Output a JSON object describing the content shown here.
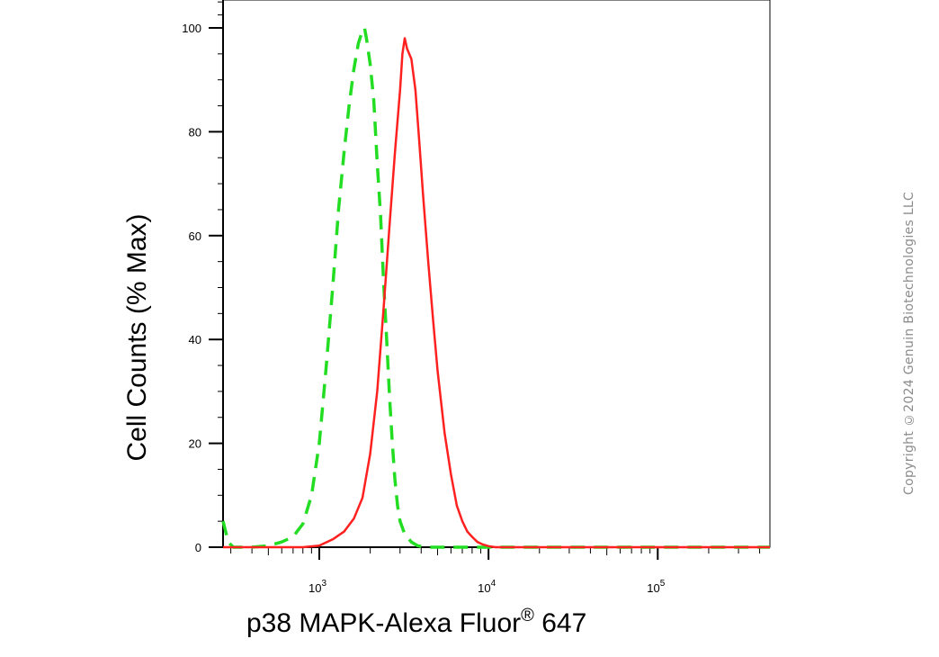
{
  "chart_data": {
    "type": "line",
    "title": "",
    "xlabel": "p38 MAPK-Alexa Fluor",
    "xlabel_superscript": "®",
    "xlabel_suffix": " 647",
    "ylabel": "Cell Counts (% Max)",
    "x_scale": "log",
    "xlim": [
      270,
      460000
    ],
    "ylim": [
      0,
      105
    ],
    "y_ticks": [
      0,
      20,
      40,
      60,
      80,
      100
    ],
    "x_major_ticks": [
      {
        "value": 1000,
        "base": "10",
        "exp": "3"
      },
      {
        "value": 10000,
        "base": "10",
        "exp": "4"
      },
      {
        "value": 100000,
        "base": "10",
        "exp": "5"
      }
    ],
    "grid": false,
    "legend": "none",
    "series": [
      {
        "color": "#22dd22",
        "style": "dashed",
        "x": [
          270,
          290,
          310,
          400,
          500,
          600,
          700,
          800,
          900,
          1000,
          1100,
          1200,
          1300,
          1400,
          1500,
          1600,
          1700,
          1800,
          1850,
          1900,
          2000,
          2100,
          2200,
          2300,
          2400,
          2500,
          2600,
          2700,
          2800,
          2900,
          3000,
          3200,
          3500,
          3800,
          4200,
          5000,
          10000,
          460000
        ],
        "y": [
          5,
          1,
          0,
          0,
          0.3,
          1,
          2,
          4.5,
          10,
          20,
          35,
          50,
          65,
          76,
          85,
          92,
          97,
          99.5,
          100,
          98,
          93,
          86,
          74,
          64,
          51,
          40,
          29,
          20,
          13,
          8,
          5,
          2.5,
          1,
          0.3,
          0,
          0,
          0,
          0
        ]
      },
      {
        "color": "#ff2020",
        "style": "solid",
        "x": [
          270,
          800,
          1000,
          1200,
          1400,
          1600,
          1800,
          2000,
          2200,
          2400,
          2600,
          2800,
          3000,
          3100,
          3200,
          3300,
          3400,
          3500,
          3700,
          3900,
          4100,
          4400,
          4700,
          5000,
          5500,
          6000,
          6500,
          7000,
          7500,
          8000,
          8600,
          9300,
          10000,
          11000,
          460000
        ],
        "y": [
          0,
          0,
          0.3,
          1.5,
          3,
          5.5,
          9.5,
          18,
          30,
          46,
          62,
          76,
          88,
          95,
          98,
          96,
          95,
          94,
          88,
          78,
          68,
          55,
          44,
          34,
          22,
          14,
          8,
          5,
          3,
          2,
          1,
          0.5,
          0.2,
          0,
          0
        ]
      }
    ]
  },
  "watermark": "Copyright ©2024 Genuin Biotechnologies LLC"
}
